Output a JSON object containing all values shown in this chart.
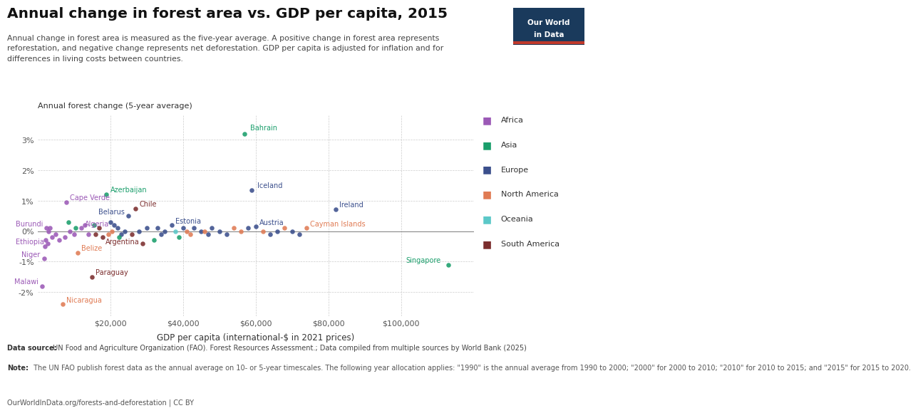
{
  "title": "Annual change in forest area vs. GDP per capita, 2015",
  "subtitle": "Annual change in forest area is measured as the five-year average. A positive change in forest area represents\nreforestation, and negative change represents net deforestation. GDP per capita is adjusted for inflation and for\ndifferences in living costs between countries.",
  "ylabel": "Annual forest change (5-year average)",
  "xlabel": "GDP per capita (international-$ in 2021 prices)",
  "datasource_bold": "Data source:",
  "datasource_normal": " UN Food and Agriculture Organization (FAO). Forest Resources Assessment.; Data compiled from multiple sources by World Bank (2025)",
  "note_bold": "Note:",
  "note_normal": " The UN FAO publish forest data as the annual average on 10- or 5-year timescales. The following year allocation applies: \"1990\" is the annual average from 1990 to 2000; \"2000\" for 2000 to 2010; \"2010\" for 2010 to 2015; and \"2015\" for 2015 to 2020.",
  "credit": "OurWorldInData.org/forests-and-deforestation | CC BY",
  "regions": {
    "Africa": "#9B59B6",
    "Asia": "#1A9E6B",
    "Europe": "#3B4F8C",
    "North America": "#E07B54",
    "Oceania": "#5BC8C8",
    "South America": "#7B2D2D"
  },
  "points": [
    {
      "country": "Bahrain",
      "gdp": 57000,
      "change": 0.032,
      "region": "Asia",
      "label": true
    },
    {
      "country": "Iceland",
      "gdp": 59000,
      "change": 0.0135,
      "region": "Europe",
      "label": true
    },
    {
      "country": "Azerbaijan",
      "gdp": 19000,
      "change": 0.012,
      "region": "Asia",
      "label": true
    },
    {
      "country": "Ireland",
      "gdp": 82000,
      "change": 0.0072,
      "region": "Europe",
      "label": true
    },
    {
      "country": "Cape Verde",
      "gdp": 8000,
      "change": 0.0095,
      "region": "Africa",
      "label": true
    },
    {
      "country": "Chile",
      "gdp": 27000,
      "change": 0.0075,
      "region": "South America",
      "label": true
    },
    {
      "country": "Belarus",
      "gdp": 25000,
      "change": 0.005,
      "region": "Europe",
      "label": true
    },
    {
      "country": "Estonia",
      "gdp": 37000,
      "change": 0.002,
      "region": "Europe",
      "label": true
    },
    {
      "country": "Austria",
      "gdp": 60000,
      "change": 0.0015,
      "region": "Europe",
      "label": true
    },
    {
      "country": "Cayman Islands",
      "gdp": 74000,
      "change": 0.001,
      "region": "North America",
      "label": true
    },
    {
      "country": "Burundi",
      "gdp": 2500,
      "change": 0.001,
      "region": "Africa",
      "label": true
    },
    {
      "country": "Algeria",
      "gdp": 12000,
      "change": 0.001,
      "region": "Africa",
      "label": true
    },
    {
      "country": "Ethiopia",
      "gdp": 2800,
      "change": -0.004,
      "region": "Africa",
      "label": true
    },
    {
      "country": "Argentina",
      "gdp": 29000,
      "change": -0.004,
      "region": "South America",
      "label": true
    },
    {
      "country": "Belize",
      "gdp": 11000,
      "change": -0.007,
      "region": "North America",
      "label": true
    },
    {
      "country": "Niger",
      "gdp": 1800,
      "change": -0.009,
      "region": "Africa",
      "label": true
    },
    {
      "country": "Paraguay",
      "gdp": 15000,
      "change": -0.015,
      "region": "South America",
      "label": true
    },
    {
      "country": "Malawi",
      "gdp": 1200,
      "change": -0.018,
      "region": "Africa",
      "label": true
    },
    {
      "country": "Nicaragua",
      "gdp": 7000,
      "change": -0.024,
      "region": "North America",
      "label": true
    },
    {
      "country": "Singapore",
      "gdp": 113000,
      "change": -0.011,
      "region": "Asia",
      "label": true
    },
    {
      "country": "",
      "gdp": 3000,
      "change": 0.0,
      "region": "Africa",
      "label": false
    },
    {
      "country": "",
      "gdp": 4000,
      "change": -0.002,
      "region": "Africa",
      "label": false
    },
    {
      "country": "",
      "gdp": 5000,
      "change": -0.001,
      "region": "Africa",
      "label": false
    },
    {
      "country": "",
      "gdp": 3500,
      "change": 0.001,
      "region": "Africa",
      "label": false
    },
    {
      "country": "",
      "gdp": 6000,
      "change": -0.003,
      "region": "Africa",
      "label": false
    },
    {
      "country": "",
      "gdp": 7500,
      "change": -0.002,
      "region": "Africa",
      "label": false
    },
    {
      "country": "",
      "gdp": 9000,
      "change": 0.0,
      "region": "Africa",
      "label": false
    },
    {
      "country": "",
      "gdp": 10000,
      "change": -0.001,
      "region": "Africa",
      "label": false
    },
    {
      "country": "",
      "gdp": 13000,
      "change": 0.002,
      "region": "Africa",
      "label": false
    },
    {
      "country": "",
      "gdp": 14000,
      "change": -0.001,
      "region": "Africa",
      "label": false
    },
    {
      "country": "",
      "gdp": 16000,
      "change": -0.001,
      "region": "South America",
      "label": false
    },
    {
      "country": "",
      "gdp": 17000,
      "change": 0.001,
      "region": "South America",
      "label": false
    },
    {
      "country": "",
      "gdp": 18000,
      "change": -0.002,
      "region": "South America",
      "label": false
    },
    {
      "country": "",
      "gdp": 20000,
      "change": 0.003,
      "region": "Europe",
      "label": false
    },
    {
      "country": "",
      "gdp": 21000,
      "change": 0.002,
      "region": "Europe",
      "label": false
    },
    {
      "country": "",
      "gdp": 22000,
      "change": 0.001,
      "region": "Europe",
      "label": false
    },
    {
      "country": "",
      "gdp": 23000,
      "change": -0.001,
      "region": "Europe",
      "label": false
    },
    {
      "country": "",
      "gdp": 24000,
      "change": 0.0,
      "region": "Europe",
      "label": false
    },
    {
      "country": "",
      "gdp": 26000,
      "change": -0.001,
      "region": "South America",
      "label": false
    },
    {
      "country": "",
      "gdp": 28000,
      "change": 0.0,
      "region": "Europe",
      "label": false
    },
    {
      "country": "",
      "gdp": 30000,
      "change": 0.001,
      "region": "Europe",
      "label": false
    },
    {
      "country": "",
      "gdp": 32000,
      "change": -0.003,
      "region": "Asia",
      "label": false
    },
    {
      "country": "",
      "gdp": 33000,
      "change": 0.001,
      "region": "Europe",
      "label": false
    },
    {
      "country": "",
      "gdp": 34000,
      "change": -0.001,
      "region": "Europe",
      "label": false
    },
    {
      "country": "",
      "gdp": 35000,
      "change": 0.0,
      "region": "Europe",
      "label": false
    },
    {
      "country": "",
      "gdp": 38000,
      "change": 0.0,
      "region": "Oceania",
      "label": false
    },
    {
      "country": "",
      "gdp": 39000,
      "change": -0.002,
      "region": "Asia",
      "label": false
    },
    {
      "country": "",
      "gdp": 40000,
      "change": 0.001,
      "region": "Europe",
      "label": false
    },
    {
      "country": "",
      "gdp": 41000,
      "change": 0.0,
      "region": "North America",
      "label": false
    },
    {
      "country": "",
      "gdp": 42000,
      "change": -0.001,
      "region": "North America",
      "label": false
    },
    {
      "country": "",
      "gdp": 43000,
      "change": 0.001,
      "region": "Europe",
      "label": false
    },
    {
      "country": "",
      "gdp": 45000,
      "change": 0.0,
      "region": "Europe",
      "label": false
    },
    {
      "country": "",
      "gdp": 46000,
      "change": 0.0,
      "region": "North America",
      "label": false
    },
    {
      "country": "",
      "gdp": 47000,
      "change": -0.001,
      "region": "Europe",
      "label": false
    },
    {
      "country": "",
      "gdp": 48000,
      "change": 0.001,
      "region": "Europe",
      "label": false
    },
    {
      "country": "",
      "gdp": 50000,
      "change": 0.0,
      "region": "Europe",
      "label": false
    },
    {
      "country": "",
      "gdp": 52000,
      "change": -0.001,
      "region": "Europe",
      "label": false
    },
    {
      "country": "",
      "gdp": 54000,
      "change": 0.001,
      "region": "North America",
      "label": false
    },
    {
      "country": "",
      "gdp": 56000,
      "change": 0.0,
      "region": "North America",
      "label": false
    },
    {
      "country": "",
      "gdp": 58000,
      "change": 0.001,
      "region": "Europe",
      "label": false
    },
    {
      "country": "",
      "gdp": 62000,
      "change": 0.0,
      "region": "North America",
      "label": false
    },
    {
      "country": "",
      "gdp": 64000,
      "change": -0.001,
      "region": "Europe",
      "label": false
    },
    {
      "country": "",
      "gdp": 66000,
      "change": 0.0,
      "region": "Europe",
      "label": false
    },
    {
      "country": "",
      "gdp": 68000,
      "change": 0.001,
      "region": "North America",
      "label": false
    },
    {
      "country": "",
      "gdp": 70000,
      "change": 0.0,
      "region": "Europe",
      "label": false
    },
    {
      "country": "",
      "gdp": 72000,
      "change": -0.001,
      "region": "Europe",
      "label": false
    },
    {
      "country": "",
      "gdp": 2000,
      "change": -0.005,
      "region": "Africa",
      "label": false
    },
    {
      "country": "",
      "gdp": 2200,
      "change": -0.003,
      "region": "Africa",
      "label": false
    },
    {
      "country": "",
      "gdp": 19500,
      "change": -0.001,
      "region": "North America",
      "label": false
    },
    {
      "country": "",
      "gdp": 20500,
      "change": 0.0,
      "region": "North America",
      "label": false
    },
    {
      "country": "",
      "gdp": 8500,
      "change": 0.003,
      "region": "Asia",
      "label": false
    },
    {
      "country": "",
      "gdp": 10500,
      "change": 0.001,
      "region": "Asia",
      "label": false
    },
    {
      "country": "",
      "gdp": 15500,
      "change": 0.002,
      "region": "Asia",
      "label": false
    },
    {
      "country": "",
      "gdp": 22500,
      "change": -0.002,
      "region": "Asia",
      "label": false
    }
  ],
  "logo_bg": "#1a3a5c",
  "logo_accent": "#c0392b"
}
